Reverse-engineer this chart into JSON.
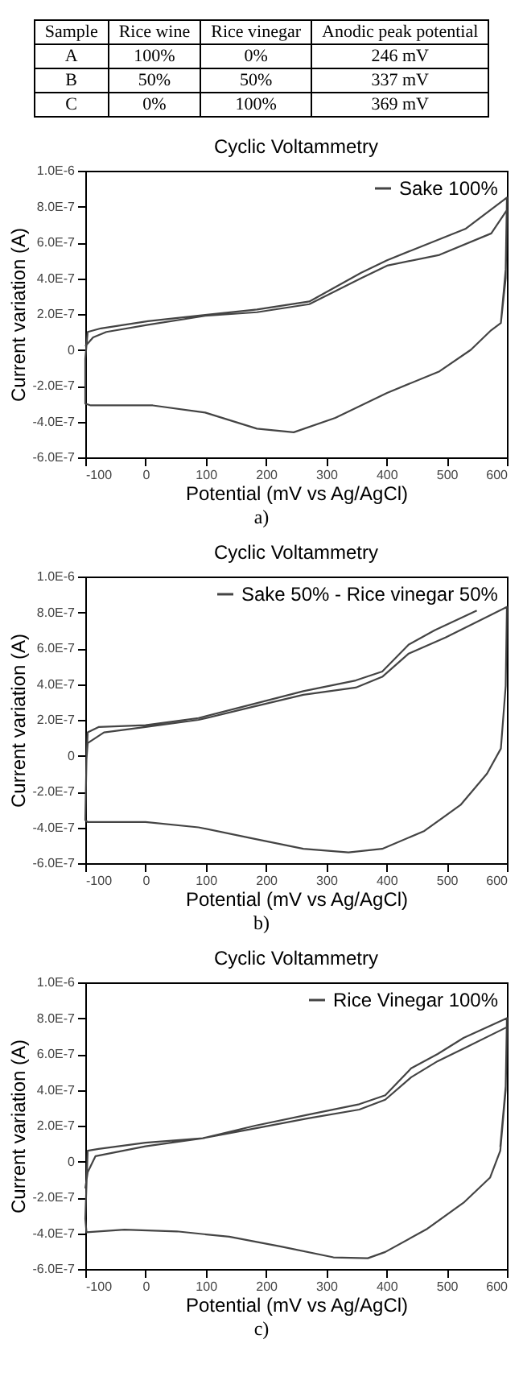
{
  "chart_data": [
    {
      "type": "other",
      "cell_labels": [
        [
          "Sample",
          "Rice wine",
          "Rice vinegar",
          "Anodic peak potential"
        ],
        [
          "A",
          "100%",
          "0%",
          "246 mV"
        ],
        [
          "B",
          "50%",
          "50%",
          "337 mV"
        ],
        [
          "C",
          "0%",
          "100%",
          "369 mV"
        ]
      ]
    },
    {
      "type": "line",
      "title": "Cyclic Voltammetry",
      "xlabel": "Potential (mV vs Ag/AgCl)",
      "ylabel": "Current variation (A)",
      "annotations": [
        "a)"
      ],
      "legend": "top right",
      "grid": false,
      "xlim": [
        -100,
        600
      ],
      "xticks": [
        -100,
        0,
        100,
        200,
        300,
        400,
        500,
        600
      ],
      "ylim": [
        -6e-07,
        1e-06
      ],
      "yticks": [
        {
          "value": -6e-07,
          "label": "-6.0E-7"
        },
        {
          "value": -4e-07,
          "label": "-4.0E-7"
        },
        {
          "value": -2e-07,
          "label": "-2.0E-7"
        },
        {
          "value": 0,
          "label": "0"
        },
        {
          "value": 2e-07,
          "label": "2.0E-7"
        },
        {
          "value": 4e-07,
          "label": "4.0E-7"
        },
        {
          "value": 6e-07,
          "label": "6.0E-7"
        },
        {
          "value": 8e-07,
          "label": "8.0E-7"
        },
        {
          "value": 1e-06,
          "label": "1.0E-6"
        }
      ],
      "series": [
        {
          "name": "Sake 100%",
          "color": "#444444",
          "x": [
            -100,
            -87,
            -65,
            4,
            99,
            185,
            272,
            358,
            401,
            488,
            574,
            600,
            598,
            590,
            574,
            540,
            488,
            401,
            315,
            246,
            185,
            99,
            12,
            -91,
            -100,
            -100,
            -96,
            -74,
            4,
            99,
            185,
            272,
            358,
            401,
            445,
            531,
            600,
            598,
            590,
            574
          ],
          "values": [
            2e-08,
            7e-08,
            1e-07,
            1.4e-07,
            1.9e-07,
            2.1e-07,
            2.55e-07,
            4e-07,
            4.7e-07,
            5.3e-07,
            6.5e-07,
            7.8e-07,
            4e-07,
            1.5e-07,
            1.1e-07,
            0,
            -1.2e-07,
            -2.4e-07,
            -3.8e-07,
            -4.6e-07,
            -4.4e-07,
            -3.5e-07,
            -3.1e-07,
            -3.1e-07,
            -3e-07,
            -5e-08,
            1e-07,
            1.2e-07,
            1.6e-07,
            1.95e-07,
            2.25e-07,
            2.7e-07,
            4.3e-07,
            5e-07,
            5.6e-07,
            6.75e-07,
            8.5e-07,
            4.5e-07,
            1.5e-07,
            1.1e-07
          ]
        }
      ]
    },
    {
      "type": "line",
      "title": "Cyclic Voltammetry",
      "xlabel": "Potential (mV vs Ag/AgCl)",
      "ylabel": "Current variation (A)",
      "annotations": [
        "b)"
      ],
      "legend": "top right",
      "grid": false,
      "xlim": [
        -100,
        600
      ],
      "xticks": [
        -100,
        0,
        100,
        200,
        300,
        400,
        500,
        600
      ],
      "ylim": [
        -6e-07,
        1e-06
      ],
      "yticks": [
        {
          "value": -6e-07,
          "label": "-6.0E-7"
        },
        {
          "value": -4e-07,
          "label": "-4.0E-7"
        },
        {
          "value": -2e-07,
          "label": "-2.0E-7"
        },
        {
          "value": 0,
          "label": "0"
        },
        {
          "value": 2e-07,
          "label": "2.0E-7"
        },
        {
          "value": 4e-07,
          "label": "4.0E-7"
        },
        {
          "value": 6e-07,
          "label": "6.0E-7"
        },
        {
          "value": 8e-07,
          "label": "8.0E-7"
        },
        {
          "value": 1e-06,
          "label": "1.0E-6"
        }
      ],
      "series": [
        {
          "name": "Sake 50% - Rice vinegar 50%",
          "color": "#444444",
          "x": [
            -98,
            -96,
            -69,
            0,
            88,
            175,
            262,
            349,
            393,
            437,
            498,
            600,
            598,
            590,
            567,
            523,
            463,
            393,
            337,
            262,
            175,
            88,
            0,
            -96,
            -100,
            -98,
            -96,
            -78,
            0,
            88,
            175,
            262,
            349,
            393,
            437,
            480,
            550
          ],
          "values": [
            -2e-08,
            7e-08,
            1.3e-07,
            1.6e-07,
            2e-07,
            2.7e-07,
            3.4e-07,
            3.8e-07,
            4.4e-07,
            5.7e-07,
            6.6e-07,
            8.3e-07,
            3.9e-07,
            4e-08,
            -1e-07,
            -2.75e-07,
            -4.2e-07,
            -5.2e-07,
            -5.4e-07,
            -5.2e-07,
            -4.6e-07,
            -4e-07,
            -3.7e-07,
            -3.7e-07,
            -3.6e-07,
            -2e-08,
            1.3e-07,
            1.6e-07,
            1.7e-07,
            2.1e-07,
            2.85e-07,
            3.6e-07,
            4.2e-07,
            4.7e-07,
            6.2e-07,
            7e-07,
            8.1e-07
          ]
        }
      ]
    },
    {
      "type": "line",
      "title": "Cyclic Voltammetry",
      "xlabel": "Potential (mV vs Ag/AgCl)",
      "ylabel": "Current variation (A)",
      "annotations": [
        "c)"
      ],
      "legend": "top right",
      "grid": false,
      "xlim": [
        -100,
        600
      ],
      "xticks": [
        -100,
        0,
        100,
        200,
        300,
        400,
        500,
        600
      ],
      "ylim": [
        -6e-07,
        1e-06
      ],
      "yticks": [
        {
          "value": -6e-07,
          "label": "-6.0E-7"
        },
        {
          "value": -4e-07,
          "label": "-4.0E-7"
        },
        {
          "value": -2e-07,
          "label": "-2.0E-7"
        },
        {
          "value": 0,
          "label": "0"
        },
        {
          "value": 2e-07,
          "label": "2.0E-7"
        },
        {
          "value": 4e-07,
          "label": "4.0E-7"
        },
        {
          "value": 6e-07,
          "label": "6.0E-7"
        },
        {
          "value": 8e-07,
          "label": "8.0E-7"
        },
        {
          "value": 1e-06,
          "label": "1.0E-6"
        }
      ],
      "series": [
        {
          "name": "Rice Vinegar 100%",
          "color": "#444444",
          "x": [
            -100,
            -96,
            -83,
            0,
            95,
            182,
            268,
            355,
            398,
            441,
            485,
            528,
            600,
            598,
            589,
            572,
            528,
            468,
            398,
            369,
            312,
            225,
            139,
            52,
            -35,
            -98,
            -100,
            -96,
            -78,
            0,
            95,
            182,
            268,
            355,
            398,
            441,
            485,
            528,
            600,
            598,
            589
          ],
          "values": [
            -1.5e-07,
            -6e-08,
            3e-08,
            8.5e-08,
            1.3e-07,
            1.85e-07,
            2.4e-07,
            2.9e-07,
            3.45e-07,
            4.7e-07,
            5.6e-07,
            6.3e-07,
            7.5e-07,
            4e-07,
            6e-08,
            -9e-08,
            -2.3e-07,
            -3.75e-07,
            -5.05e-07,
            -5.4e-07,
            -5.35e-07,
            -4.75e-07,
            -4.2e-07,
            -3.9e-07,
            -3.8e-07,
            -3.95e-07,
            -3.2e-07,
            6e-08,
            7e-08,
            1.05e-07,
            1.3e-07,
            2e-07,
            2.6e-07,
            3.2e-07,
            3.7e-07,
            5.2e-07,
            6e-07,
            6.9e-07,
            8e-07,
            4.2e-07,
            8e-08
          ]
        }
      ]
    }
  ]
}
